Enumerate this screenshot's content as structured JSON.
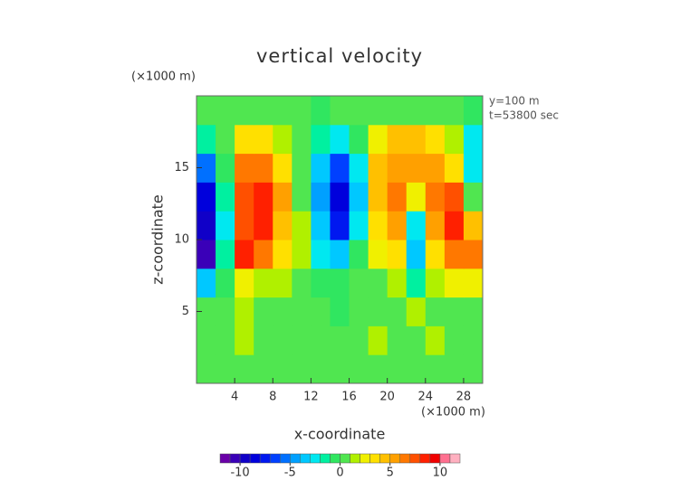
{
  "chart_data": {
    "type": "contour",
    "title": "vertical velocity",
    "x_label": "x-coordinate",
    "y_label": "z-coordinate",
    "x_unit": "(×1000 m)",
    "y_unit": "(×1000 m)",
    "annotations": [
      "y=100 m",
      "t=53800 sec"
    ],
    "xlim": [
      0,
      30
    ],
    "ylim": [
      0,
      20
    ],
    "xticks": [
      4,
      8,
      12,
      16,
      20,
      24,
      28
    ],
    "yticks": [
      5,
      10,
      15
    ],
    "x": [
      1,
      3,
      5,
      7,
      9,
      11,
      13,
      15,
      17,
      19,
      21,
      23,
      25,
      27,
      29
    ],
    "y": [
      1,
      3,
      5,
      7,
      9,
      11,
      13,
      15,
      17,
      19
    ],
    "z": [
      [
        0,
        0,
        0,
        0,
        0,
        0,
        0,
        0,
        0,
        0,
        0,
        0,
        0,
        0,
        0
      ],
      [
        0,
        0,
        1,
        0,
        0,
        0,
        0,
        0,
        0,
        1,
        0,
        0,
        1,
        0,
        0
      ],
      [
        0,
        0,
        1,
        0,
        0,
        0,
        0,
        -1,
        0,
        0,
        0,
        1,
        0,
        0,
        0
      ],
      [
        -4,
        -1,
        2,
        1,
        1,
        0,
        -1,
        -1,
        0,
        0,
        1,
        -2,
        1,
        2,
        2
      ],
      [
        -11,
        -2,
        8,
        6,
        3,
        1,
        -3,
        -4,
        -1,
        2,
        3,
        -4,
        3,
        6,
        6
      ],
      [
        -10,
        -3,
        7,
        8,
        4,
        1,
        -4,
        -8,
        -3,
        3,
        5,
        -3,
        5,
        8,
        4
      ],
      [
        -9,
        -2,
        7,
        8,
        5,
        0,
        -5,
        -9,
        -4,
        4,
        6,
        2,
        6,
        7,
        0
      ],
      [
        -6,
        -1,
        6,
        6,
        3,
        0,
        -4,
        -7,
        -3,
        4,
        5,
        5,
        5,
        3,
        -3
      ],
      [
        -2,
        0,
        3,
        3,
        1,
        0,
        -2,
        -3,
        -1,
        2,
        4,
        4,
        3,
        1,
        -3
      ],
      [
        0,
        0,
        0,
        0,
        0,
        0,
        -1,
        0,
        0,
        0,
        0,
        0,
        0,
        0,
        -1
      ]
    ],
    "levels": [
      -12,
      -11,
      -10,
      -9,
      -8,
      -7,
      -6,
      -5,
      -4,
      -3,
      -2,
      -1,
      0,
      1,
      2,
      3,
      4,
      5,
      6,
      7,
      8,
      9,
      10,
      11,
      12
    ],
    "colors": [
      "#6a00a8",
      "#3a00b8",
      "#1000c8",
      "#0000dc",
      "#0018f0",
      "#0040ff",
      "#0070ff",
      "#00a0ff",
      "#00c8ff",
      "#00e8f0",
      "#00f0a0",
      "#30e660",
      "#50e650",
      "#b0f000",
      "#f0f000",
      "#ffe000",
      "#ffc000",
      "#ffa000",
      "#ff7800",
      "#ff5000",
      "#ff2000",
      "#f00000",
      "#ff7090",
      "#ffb0c0"
    ],
    "colorbar_ticks": [
      -10,
      -5,
      0,
      5,
      10
    ]
  }
}
